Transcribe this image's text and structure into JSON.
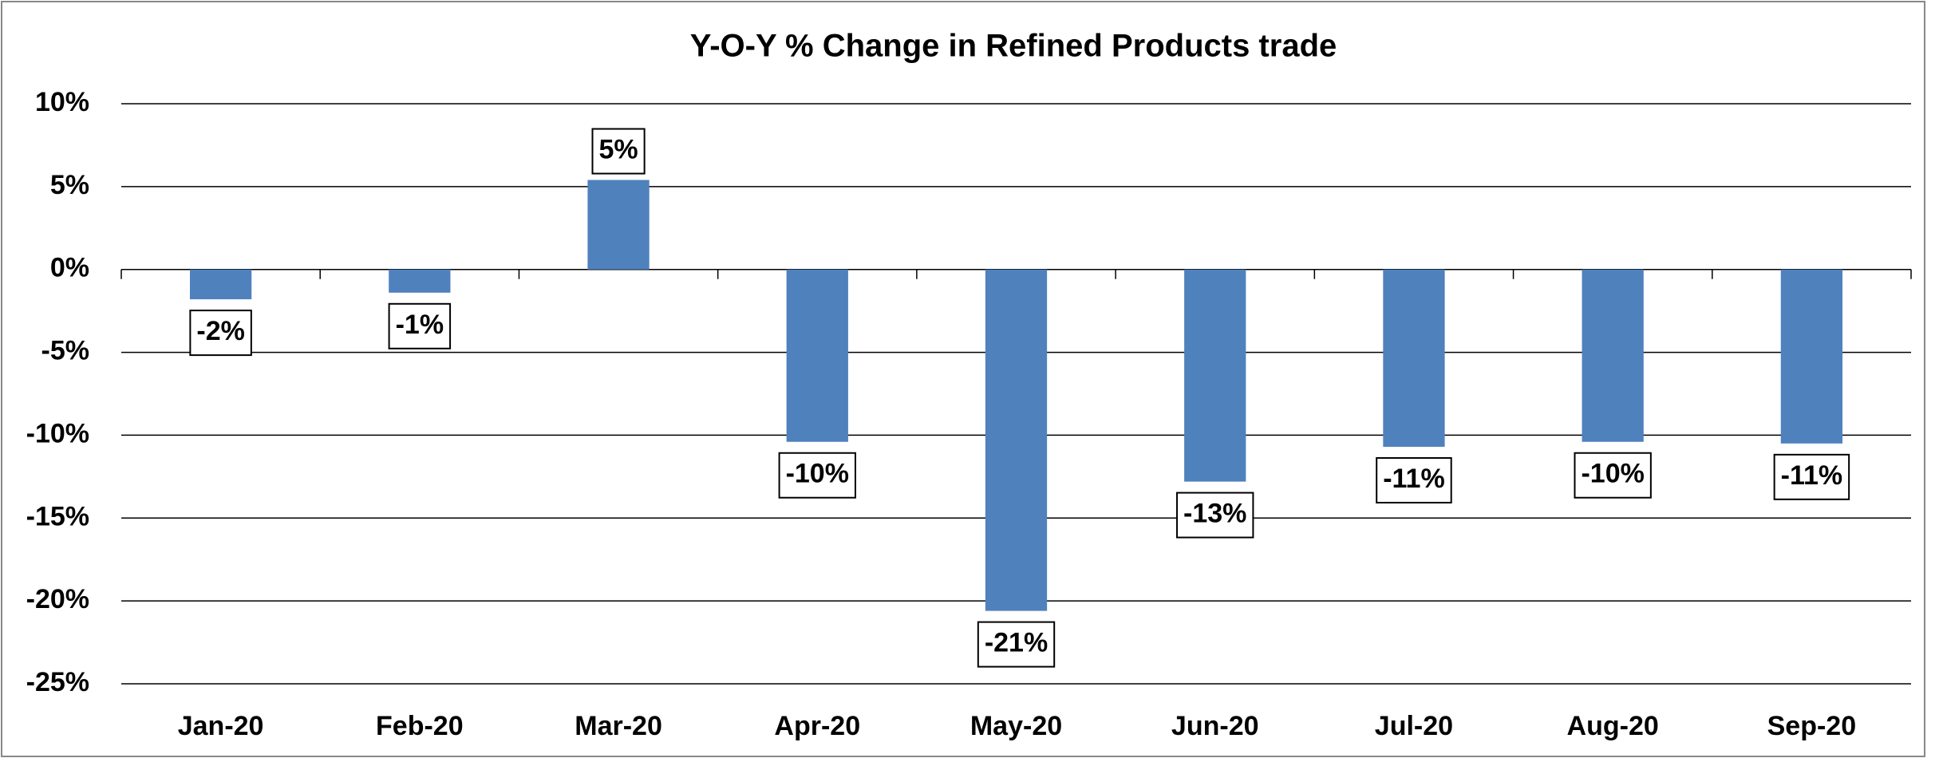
{
  "chart_data": {
    "type": "bar",
    "title": "Y-O-Y % Change in Refined Products trade",
    "categories": [
      "Jan-20",
      "Feb-20",
      "Mar-20",
      "Apr-20",
      "May-20",
      "Jun-20",
      "Jul-20",
      "Aug-20",
      "Sep-20"
    ],
    "values": [
      -1.8,
      -1.4,
      5.4,
      -10.4,
      -20.6,
      -12.8,
      -10.7,
      -10.4,
      -10.5
    ],
    "value_labels": [
      "-2%",
      "-1%",
      "5%",
      "-10%",
      "-21%",
      "-13%",
      "-11%",
      "-10%",
      "-11%"
    ],
    "color": "#4f81bd",
    "ylim": [
      -25,
      10
    ],
    "yticks": [
      {
        "value": -25,
        "label": "-25%"
      },
      {
        "value": -20,
        "label": "-20%"
      },
      {
        "value": -15,
        "label": "-15%"
      },
      {
        "value": -10,
        "label": "-10%"
      },
      {
        "value": -5,
        "label": "-5%"
      },
      {
        "value": 0,
        "label": "0%"
      },
      {
        "value": 5,
        "label": "5%"
      },
      {
        "value": 10,
        "label": "10%"
      }
    ],
    "grid": true
  }
}
